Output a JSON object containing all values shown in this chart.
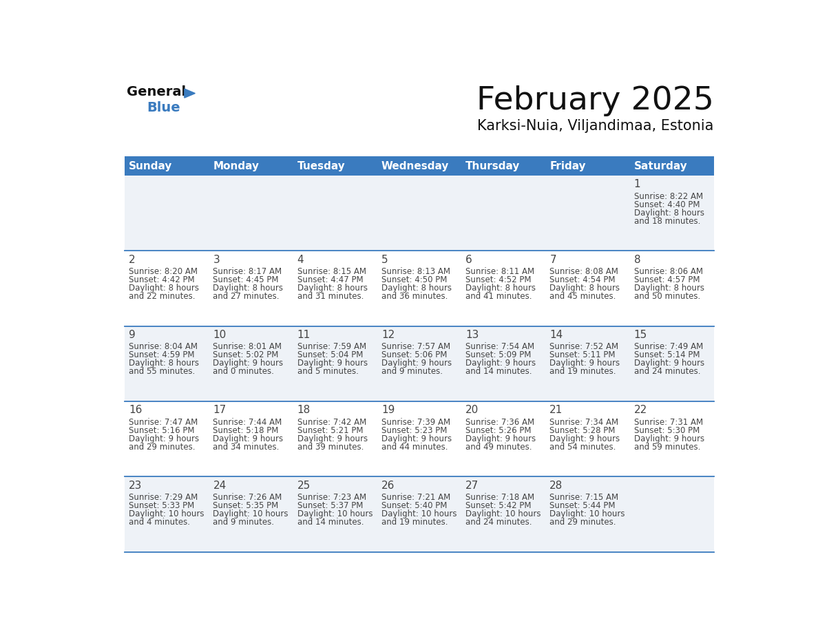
{
  "title": "February 2025",
  "subtitle": "Karksi-Nuia, Viljandimaa, Estonia",
  "days_of_week": [
    "Sunday",
    "Monday",
    "Tuesday",
    "Wednesday",
    "Thursday",
    "Friday",
    "Saturday"
  ],
  "header_bg": "#3a7bbf",
  "header_text": "#ffffff",
  "cell_bg_light": "#eef2f7",
  "cell_bg_white": "#ffffff",
  "separator_color": "#3a7bbf",
  "text_color": "#444444",
  "title_color": "#111111",
  "calendar_data": [
    [
      null,
      null,
      null,
      null,
      null,
      null,
      {
        "day": "1",
        "sunrise": "8:22 AM",
        "sunset": "4:40 PM",
        "daylight_line1": "Daylight: 8 hours",
        "daylight_line2": "and 18 minutes."
      }
    ],
    [
      {
        "day": "2",
        "sunrise": "8:20 AM",
        "sunset": "4:42 PM",
        "daylight_line1": "Daylight: 8 hours",
        "daylight_line2": "and 22 minutes."
      },
      {
        "day": "3",
        "sunrise": "8:17 AM",
        "sunset": "4:45 PM",
        "daylight_line1": "Daylight: 8 hours",
        "daylight_line2": "and 27 minutes."
      },
      {
        "day": "4",
        "sunrise": "8:15 AM",
        "sunset": "4:47 PM",
        "daylight_line1": "Daylight: 8 hours",
        "daylight_line2": "and 31 minutes."
      },
      {
        "day": "5",
        "sunrise": "8:13 AM",
        "sunset": "4:50 PM",
        "daylight_line1": "Daylight: 8 hours",
        "daylight_line2": "and 36 minutes."
      },
      {
        "day": "6",
        "sunrise": "8:11 AM",
        "sunset": "4:52 PM",
        "daylight_line1": "Daylight: 8 hours",
        "daylight_line2": "and 41 minutes."
      },
      {
        "day": "7",
        "sunrise": "8:08 AM",
        "sunset": "4:54 PM",
        "daylight_line1": "Daylight: 8 hours",
        "daylight_line2": "and 45 minutes."
      },
      {
        "day": "8",
        "sunrise": "8:06 AM",
        "sunset": "4:57 PM",
        "daylight_line1": "Daylight: 8 hours",
        "daylight_line2": "and 50 minutes."
      }
    ],
    [
      {
        "day": "9",
        "sunrise": "8:04 AM",
        "sunset": "4:59 PM",
        "daylight_line1": "Daylight: 8 hours",
        "daylight_line2": "and 55 minutes."
      },
      {
        "day": "10",
        "sunrise": "8:01 AM",
        "sunset": "5:02 PM",
        "daylight_line1": "Daylight: 9 hours",
        "daylight_line2": "and 0 minutes."
      },
      {
        "day": "11",
        "sunrise": "7:59 AM",
        "sunset": "5:04 PM",
        "daylight_line1": "Daylight: 9 hours",
        "daylight_line2": "and 5 minutes."
      },
      {
        "day": "12",
        "sunrise": "7:57 AM",
        "sunset": "5:06 PM",
        "daylight_line1": "Daylight: 9 hours",
        "daylight_line2": "and 9 minutes."
      },
      {
        "day": "13",
        "sunrise": "7:54 AM",
        "sunset": "5:09 PM",
        "daylight_line1": "Daylight: 9 hours",
        "daylight_line2": "and 14 minutes."
      },
      {
        "day": "14",
        "sunrise": "7:52 AM",
        "sunset": "5:11 PM",
        "daylight_line1": "Daylight: 9 hours",
        "daylight_line2": "and 19 minutes."
      },
      {
        "day": "15",
        "sunrise": "7:49 AM",
        "sunset": "5:14 PM",
        "daylight_line1": "Daylight: 9 hours",
        "daylight_line2": "and 24 minutes."
      }
    ],
    [
      {
        "day": "16",
        "sunrise": "7:47 AM",
        "sunset": "5:16 PM",
        "daylight_line1": "Daylight: 9 hours",
        "daylight_line2": "and 29 minutes."
      },
      {
        "day": "17",
        "sunrise": "7:44 AM",
        "sunset": "5:18 PM",
        "daylight_line1": "Daylight: 9 hours",
        "daylight_line2": "and 34 minutes."
      },
      {
        "day": "18",
        "sunrise": "7:42 AM",
        "sunset": "5:21 PM",
        "daylight_line1": "Daylight: 9 hours",
        "daylight_line2": "and 39 minutes."
      },
      {
        "day": "19",
        "sunrise": "7:39 AM",
        "sunset": "5:23 PM",
        "daylight_line1": "Daylight: 9 hours",
        "daylight_line2": "and 44 minutes."
      },
      {
        "day": "20",
        "sunrise": "7:36 AM",
        "sunset": "5:26 PM",
        "daylight_line1": "Daylight: 9 hours",
        "daylight_line2": "and 49 minutes."
      },
      {
        "day": "21",
        "sunrise": "7:34 AM",
        "sunset": "5:28 PM",
        "daylight_line1": "Daylight: 9 hours",
        "daylight_line2": "and 54 minutes."
      },
      {
        "day": "22",
        "sunrise": "7:31 AM",
        "sunset": "5:30 PM",
        "daylight_line1": "Daylight: 9 hours",
        "daylight_line2": "and 59 minutes."
      }
    ],
    [
      {
        "day": "23",
        "sunrise": "7:29 AM",
        "sunset": "5:33 PM",
        "daylight_line1": "Daylight: 10 hours",
        "daylight_line2": "and 4 minutes."
      },
      {
        "day": "24",
        "sunrise": "7:26 AM",
        "sunset": "5:35 PM",
        "daylight_line1": "Daylight: 10 hours",
        "daylight_line2": "and 9 minutes."
      },
      {
        "day": "25",
        "sunrise": "7:23 AM",
        "sunset": "5:37 PM",
        "daylight_line1": "Daylight: 10 hours",
        "daylight_line2": "and 14 minutes."
      },
      {
        "day": "26",
        "sunrise": "7:21 AM",
        "sunset": "5:40 PM",
        "daylight_line1": "Daylight: 10 hours",
        "daylight_line2": "and 19 minutes."
      },
      {
        "day": "27",
        "sunrise": "7:18 AM",
        "sunset": "5:42 PM",
        "daylight_line1": "Daylight: 10 hours",
        "daylight_line2": "and 24 minutes."
      },
      {
        "day": "28",
        "sunrise": "7:15 AM",
        "sunset": "5:44 PM",
        "daylight_line1": "Daylight: 10 hours",
        "daylight_line2": "and 29 minutes."
      },
      null
    ]
  ],
  "logo_triangle_color": "#3a7bbf",
  "logo_text_color": "#111111"
}
